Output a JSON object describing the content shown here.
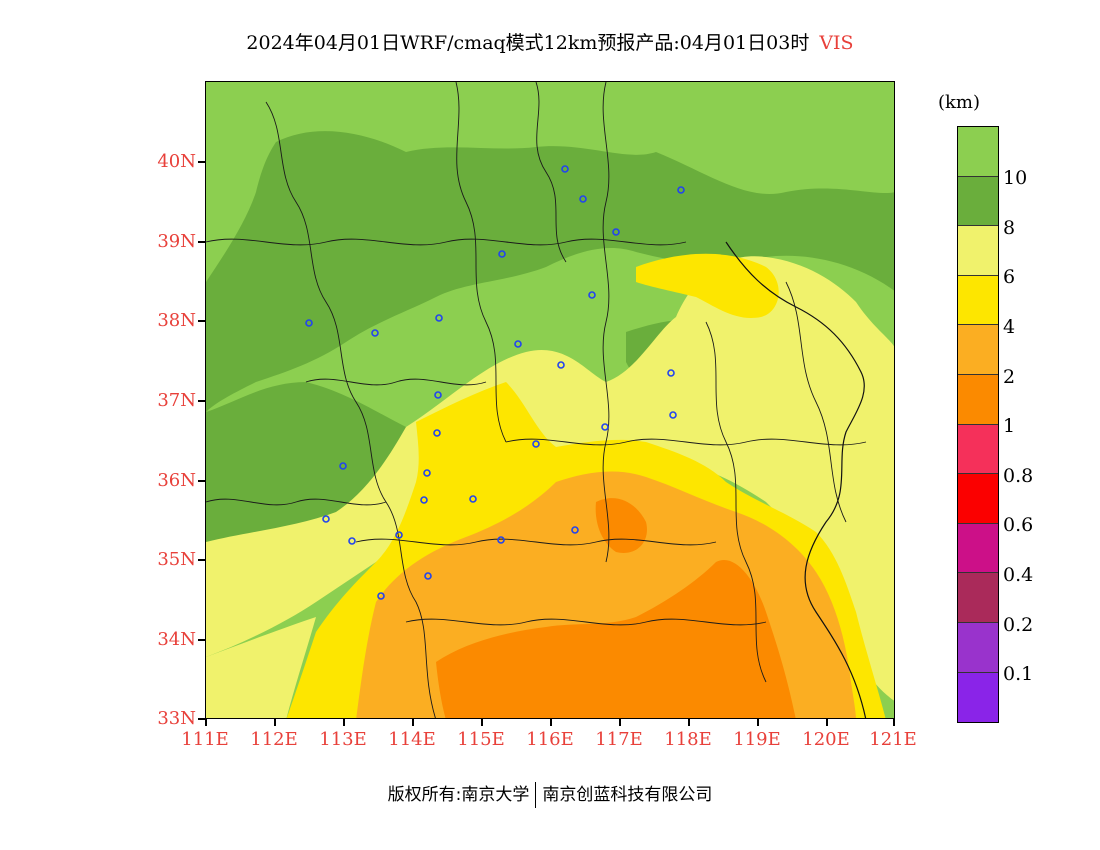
{
  "title": {
    "main": "2024年04月01日WRF/cmaq模式12km预报产品:04月01日03时",
    "variable": "VIS"
  },
  "map": {
    "latitude_labels": [
      "40N",
      "39N",
      "38N",
      "37N",
      "36N",
      "35N",
      "34N",
      "33N"
    ],
    "longitude_labels": [
      "111E",
      "112E",
      "113E",
      "114E",
      "115E",
      "116E",
      "117E",
      "118E",
      "119E",
      "120E",
      "121E"
    ],
    "colors": {
      "gt10": "#8ccf50",
      "8_10": "#6aae3c",
      "6_8": "#f0f26c",
      "4_6": "#fde600",
      "2_4": "#fbae22",
      "1_2": "#fb8a00"
    }
  },
  "colorbar": {
    "unit": "(km)",
    "labels": [
      "10",
      "8",
      "6",
      "4",
      "2",
      "1",
      "0.8",
      "0.6",
      "0.4",
      "0.2",
      "0.1"
    ],
    "colors": [
      "#8ccf50",
      "#6aae3c",
      "#f0f26c",
      "#fde600",
      "#fbae22",
      "#fb8a00",
      "#f5305a",
      "#fb0000",
      "#cc1088",
      "#aa2a5a",
      "#9933cc",
      "#8a24e8"
    ]
  },
  "footer": {
    "left": "版权所有:南京大学",
    "right": "南京创蓝科技有限公司"
  }
}
